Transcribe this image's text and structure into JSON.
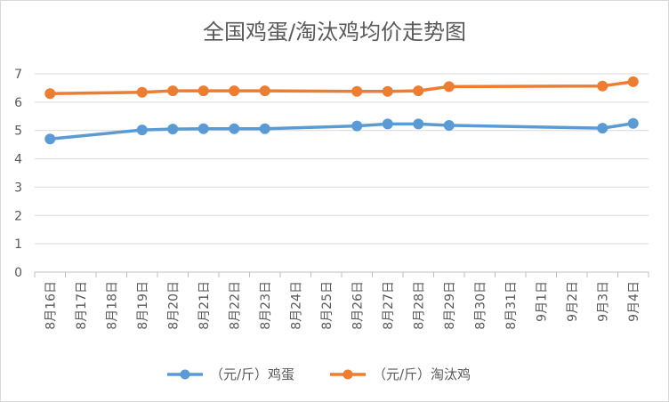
{
  "chart_data": {
    "type": "line",
    "title": "全国鸡蛋/淘汰鸡均价走势图",
    "xlabel": "",
    "ylabel": "",
    "categories": [
      "8月16日",
      "8月17日",
      "8月18日",
      "8月19日",
      "8月20日",
      "8月21日",
      "8月22日",
      "8月23日",
      "8月24日",
      "8月25日",
      "8月26日",
      "8月27日",
      "8月28日",
      "8月29日",
      "8月30日",
      "8月31日",
      "9月1日",
      "9月2日",
      "9月3日",
      "9月4日"
    ],
    "yticks": [
      "0",
      "1",
      "2",
      "3",
      "4",
      "5",
      "6",
      "7"
    ],
    "ylim": [
      0,
      7
    ],
    "grid": true,
    "legend_position": "bottom",
    "series": [
      {
        "name": "（元/斤）鸡蛋",
        "color": "#5b9bd5",
        "values": [
          4.7,
          null,
          null,
          5.02,
          5.05,
          5.06,
          5.06,
          5.06,
          null,
          null,
          5.16,
          5.23,
          5.23,
          5.18,
          null,
          null,
          null,
          null,
          5.08,
          5.25
        ]
      },
      {
        "name": "（元/斤）淘汰鸡",
        "color": "#ed7d31",
        "values": [
          6.3,
          null,
          null,
          6.35,
          6.4,
          6.4,
          6.4,
          6.4,
          null,
          null,
          6.38,
          6.38,
          6.4,
          6.55,
          null,
          null,
          null,
          null,
          6.57,
          6.72
        ]
      }
    ]
  }
}
